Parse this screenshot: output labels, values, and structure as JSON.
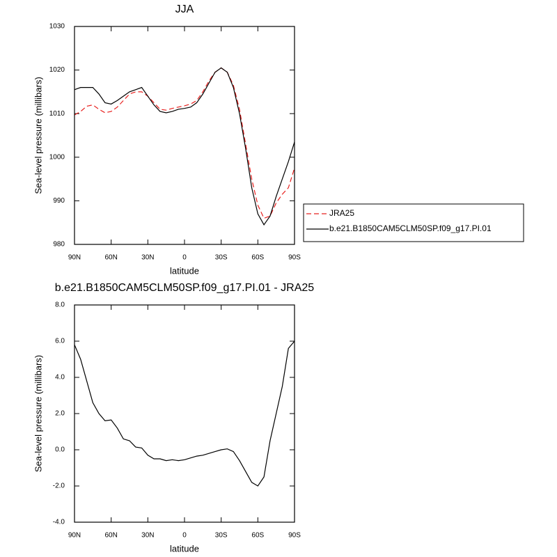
{
  "chart_data": [
    {
      "type": "line",
      "title": "JJA",
      "xlabel": "latitude",
      "ylabel": "Sea-level pressure (millibars)",
      "x": [
        90,
        85,
        80,
        75,
        70,
        65,
        60,
        55,
        50,
        45,
        40,
        35,
        30,
        25,
        20,
        15,
        10,
        5,
        0,
        -5,
        -10,
        -15,
        -20,
        -25,
        -30,
        -35,
        -40,
        -45,
        -50,
        -55,
        -60,
        -65,
        -70,
        -75,
        -80,
        -85,
        -90
      ],
      "xlim": [
        90,
        -90
      ],
      "xticks": [
        {
          "value": 90,
          "label": "90N"
        },
        {
          "value": 60,
          "label": "60N"
        },
        {
          "value": 30,
          "label": "30N"
        },
        0,
        {
          "value": -30,
          "label": "30S"
        },
        {
          "value": -60,
          "label": "60S"
        },
        {
          "value": -90,
          "label": "90S"
        }
      ],
      "ylim": [
        980,
        1030
      ],
      "yticks": [
        980,
        990,
        1000,
        1010,
        1020,
        1030
      ],
      "legend": "right",
      "series": [
        {
          "name": "JRA25",
          "color": "#e8201e",
          "dash": true,
          "values": [
            1009.7,
            1010.5,
            1011.7,
            1012,
            1011,
            1010.2,
            1010.5,
            1011.5,
            1013,
            1014.5,
            1015,
            1015,
            1014,
            1012.5,
            1011,
            1010.8,
            1011.2,
            1011.5,
            1011.8,
            1012.2,
            1013,
            1015,
            1017.5,
            1019.5,
            1020.5,
            1019.5,
            1016.5,
            1011,
            1003,
            995,
            989,
            986,
            986.5,
            989.5,
            991.5,
            993,
            997.5
          ]
        },
        {
          "name": "b.e21.B1850CAM5CLM50SP.f09_g17.PI.01",
          "color": "#000000",
          "dash": false,
          "values": [
            1015.5,
            1016,
            1016,
            1016,
            1014.5,
            1012.5,
            1012.2,
            1013,
            1014,
            1015,
            1015.5,
            1016,
            1014,
            1012,
            1010.5,
            1010.2,
            1010.5,
            1011,
            1011.2,
            1011.5,
            1012.5,
            1014.5,
            1017,
            1019.5,
            1020.5,
            1019.5,
            1016,
            1010,
            1002,
            993,
            987,
            984.5,
            986.5,
            991,
            995,
            999,
            1003.5
          ]
        }
      ]
    },
    {
      "type": "line",
      "title": "b.e21.B1850CAM5CLM50SP.f09_g17.PI.01 - JRA25",
      "xlabel": "latitude",
      "ylabel": "Sea-level pressure (millibars)",
      "x": [
        90,
        85,
        80,
        75,
        70,
        65,
        60,
        55,
        50,
        45,
        40,
        35,
        30,
        25,
        20,
        15,
        10,
        5,
        0,
        -5,
        -10,
        -15,
        -20,
        -25,
        -30,
        -35,
        -40,
        -45,
        -50,
        -55,
        -60,
        -65,
        -70,
        -75,
        -80,
        -85,
        -90
      ],
      "xlim": [
        90,
        -90
      ],
      "xticks": [
        {
          "value": 90,
          "label": "90N"
        },
        {
          "value": 60,
          "label": "60N"
        },
        {
          "value": 30,
          "label": "30N"
        },
        0,
        {
          "value": -30,
          "label": "30S"
        },
        {
          "value": -60,
          "label": "60S"
        },
        {
          "value": -90,
          "label": "90S"
        }
      ],
      "ylim": [
        -4,
        8
      ],
      "yticks": [
        {
          "value": -4,
          "label": "-4.0"
        },
        {
          "value": -2,
          "label": "-2.0"
        },
        {
          "value": 0,
          "label": "0.0"
        },
        {
          "value": 2,
          "label": "2.0"
        },
        {
          "value": 4,
          "label": "4.0"
        },
        {
          "value": 6,
          "label": "6.0"
        },
        {
          "value": 8,
          "label": "8.0"
        }
      ],
      "series": [
        {
          "color": "#000000",
          "dash": false,
          "values": [
            5.8,
            5.0,
            3.8,
            2.6,
            2.0,
            1.6,
            1.65,
            1.2,
            0.6,
            0.5,
            0.15,
            0.1,
            -0.3,
            -0.5,
            -0.5,
            -0.6,
            -0.55,
            -0.6,
            -0.55,
            -0.45,
            -0.35,
            -0.3,
            -0.2,
            -0.1,
            0.0,
            0.05,
            -0.1,
            -0.6,
            -1.2,
            -1.8,
            -2.0,
            -1.5,
            0.5,
            2.0,
            3.5,
            5.6,
            6.0
          ]
        }
      ]
    }
  ]
}
